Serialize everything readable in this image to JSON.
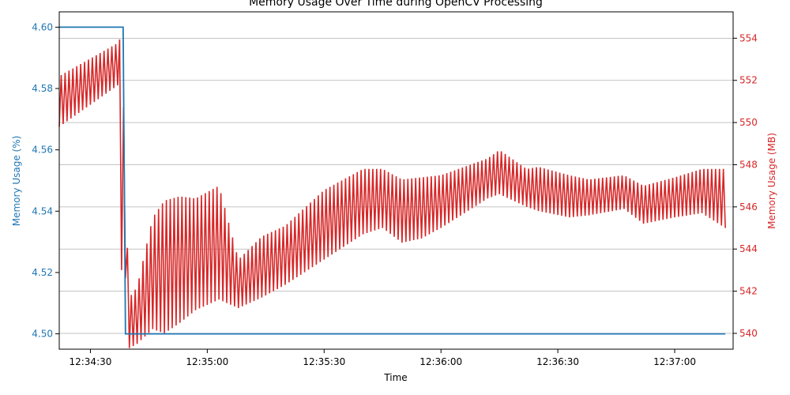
{
  "chart_data": {
    "type": "line",
    "title": "Memory Usage Over Time during OpenCV Processing",
    "xlabel": "Time",
    "ylabel_left": "Memory Usage (%)",
    "ylabel_right": "Memory Usage (MB)",
    "x_ticks": [
      "12:34:30",
      "12:35:00",
      "12:35:30",
      "12:36:00",
      "12:36:30",
      "12:37:00"
    ],
    "y_left_ticks": [
      "4.50",
      "4.52",
      "4.54",
      "4.56",
      "4.58",
      "4.60"
    ],
    "y_right_ticks": [
      "540",
      "542",
      "544",
      "546",
      "548",
      "550",
      "552",
      "554"
    ],
    "y_left_lim": [
      4.495,
      4.605
    ],
    "y_right_lim": [
      539.25,
      555.25
    ],
    "x_range": [
      "12:34:22",
      "12:37:15"
    ],
    "grid": "right-axis horizontal",
    "colors": {
      "left": "#1f77b4",
      "right": "#d62728"
    },
    "series": [
      {
        "axis": "left",
        "x": [
          "12:34:22",
          "12:34:38.4",
          "12:34:39",
          "12:37:13"
        ],
        "values": [
          4.6,
          4.6,
          4.5,
          4.5
        ]
      },
      {
        "axis": "right",
        "sawtooth_envelope": {
          "x": [
            "12:34:22",
            "12:34:37.3",
            "12:34:38",
            "12:34:39.3",
            "12:34:40",
            "12:34:42",
            "12:34:46",
            "12:34:49",
            "12:34:53",
            "12:34:57",
            "12:35:03",
            "12:35:08",
            "12:35:14",
            "12:35:20",
            "12:35:30",
            "12:35:40",
            "12:35:45",
            "12:35:50",
            "12:35:55",
            "12:36:00",
            "12:36:12",
            "12:36:15",
            "12:36:22",
            "12:36:25",
            "12:36:33",
            "12:36:38",
            "12:36:47",
            "12:36:52",
            "12:37:00",
            "12:37:07",
            "12:37:13"
          ],
          "low": [
            549.8,
            551.8,
            543.0,
            542.5,
            539.3,
            539.5,
            540.2,
            540.0,
            540.5,
            541.1,
            541.6,
            541.2,
            541.7,
            542.3,
            543.5,
            544.7,
            545.0,
            544.3,
            544.5,
            545.0,
            546.4,
            546.6,
            546.0,
            545.8,
            545.5,
            545.6,
            545.9,
            545.2,
            545.5,
            545.7,
            545.0
          ],
          "high": [
            552.2,
            553.8,
            554.3,
            545.0,
            541.7,
            542.2,
            545.5,
            546.3,
            546.5,
            546.4,
            547.0,
            543.5,
            544.6,
            545.1,
            546.8,
            547.8,
            547.8,
            547.3,
            547.4,
            547.5,
            548.3,
            548.7,
            547.8,
            547.9,
            547.5,
            547.3,
            547.5,
            547.0,
            547.4,
            547.8,
            547.8
          ]
        }
      }
    ]
  }
}
